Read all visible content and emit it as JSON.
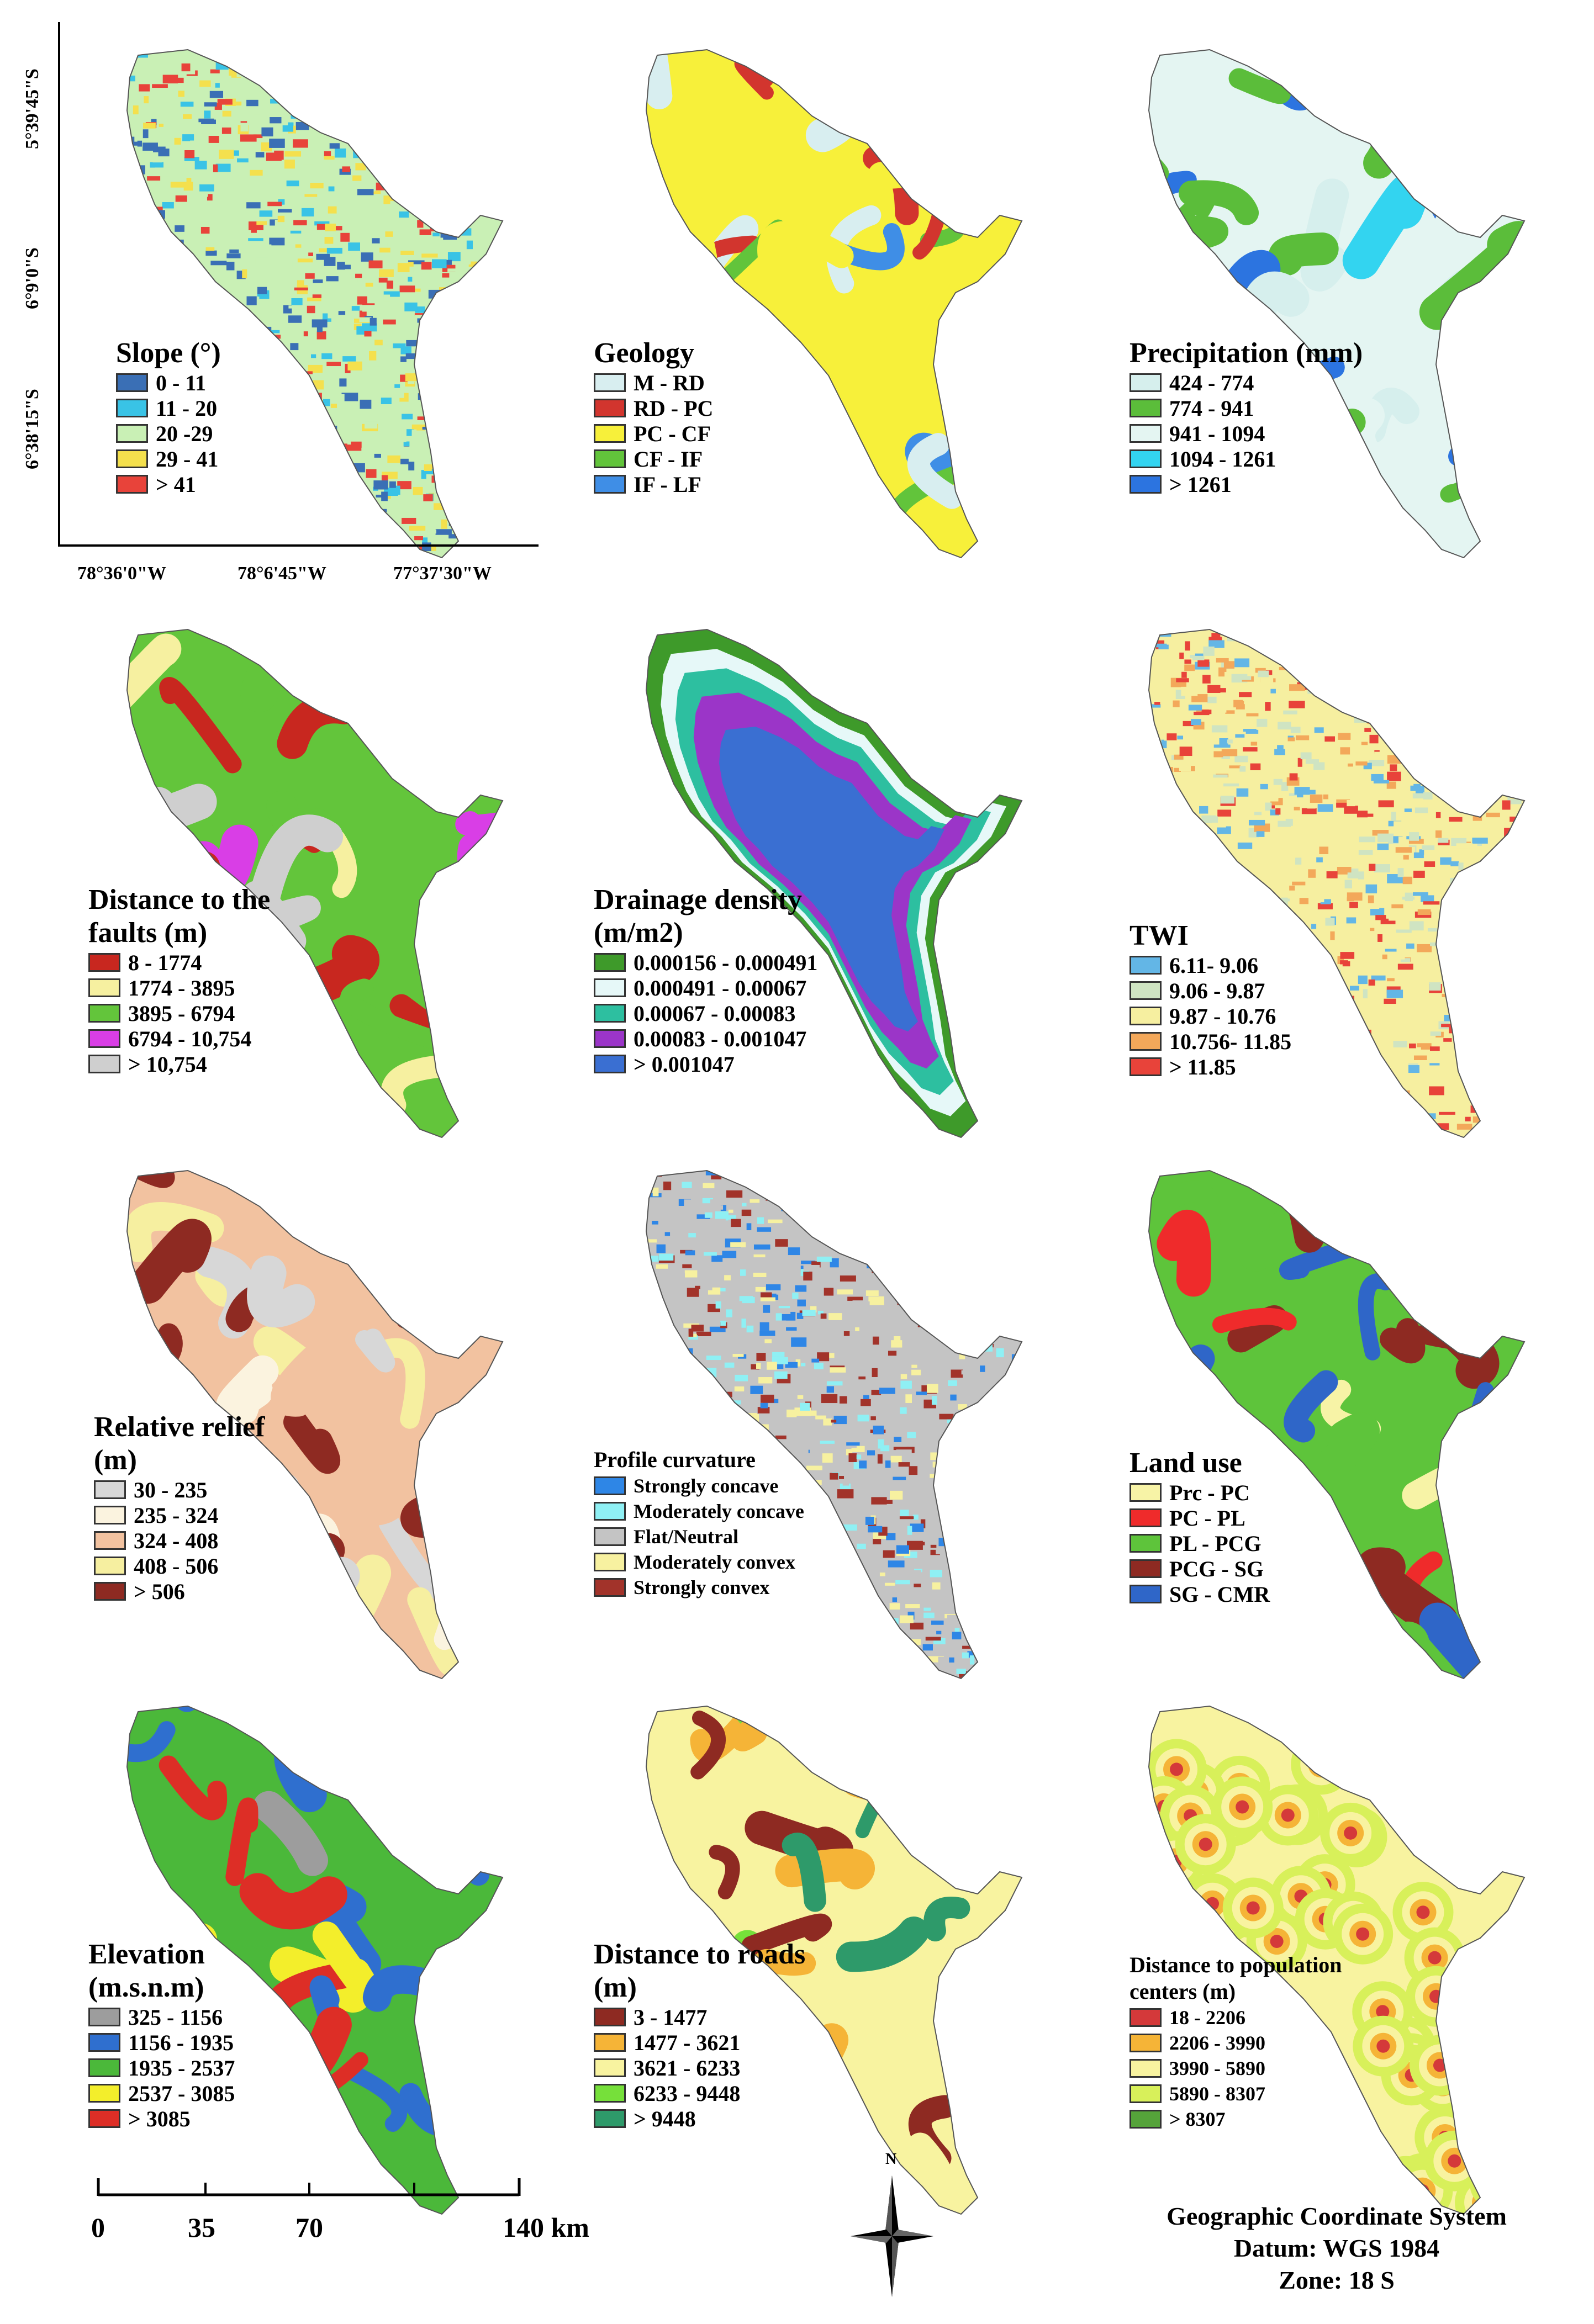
{
  "coord_labels": {
    "lon": [
      "78°36'0\"W",
      "78°6'45\"W",
      "77°37'30\"W"
    ],
    "lat": [
      "5°39'45\"S",
      "6°9'0\"S",
      "6°38'15\"S"
    ]
  },
  "panels": [
    {
      "id": "slope",
      "title": "Slope (°)",
      "texture": "noise",
      "items": [
        {
          "label": "0 - 11",
          "color": "#3a6fb5"
        },
        {
          "label": "11 - 20",
          "color": "#39c3e6"
        },
        {
          "label": "20 -29",
          "color": "#c9f0b5"
        },
        {
          "label": "29 - 41",
          "color": "#f4e04d"
        },
        {
          "label": "> 41",
          "color": "#e8433a"
        }
      ]
    },
    {
      "id": "geology",
      "title": "Geology",
      "texture": "bands",
      "items": [
        {
          "label": "M - RD",
          "color": "#d8eef0"
        },
        {
          "label": "RD - PC",
          "color": "#d2352e"
        },
        {
          "label": "PC -  CF",
          "color": "#f7f03a"
        },
        {
          "label": "CF - IF",
          "color": "#62c43b"
        },
        {
          "label": "IF - LF",
          "color": "#3f8ee6"
        }
      ]
    },
    {
      "id": "precipitation",
      "title": "Precipitation (mm)",
      "texture": "bands",
      "items": [
        {
          "label": "424 - 774",
          "color": "#d6efed"
        },
        {
          "label": "774 - 941",
          "color": "#5bbd3a"
        },
        {
          "label": "941 - 1094",
          "color": "#e4f5f2"
        },
        {
          "label": "1094 - 1261",
          "color": "#33d4f0"
        },
        {
          "label": "> 1261",
          "color": "#2c74e0"
        }
      ]
    },
    {
      "id": "faults",
      "title": "Distance to the\nfaults (m)",
      "texture": "bands",
      "items": [
        {
          "label": "8 - 1774",
          "color": "#c8271f"
        },
        {
          "label": "1774 - 3895",
          "color": "#f6f0a0"
        },
        {
          "label": "3895 - 6794",
          "color": "#63c53b"
        },
        {
          "label": "6794 - 10,754",
          "color": "#d93ee6"
        },
        {
          "label": "> 10,754",
          "color": "#cfcfcf"
        }
      ]
    },
    {
      "id": "drainage",
      "title": "Drainage density\n(m/m2)",
      "texture": "rings",
      "items": [
        {
          "label": "0.000156 - 0.000491",
          "color": "#3e9a2a"
        },
        {
          "label": "0.000491 - 0.00067",
          "color": "#e6f8f8"
        },
        {
          "label": "0.00067 - 0.00083",
          "color": "#2dbfa0"
        },
        {
          "label": "0.00083 - 0.001047",
          "color": "#9b35c8"
        },
        {
          "label": "> 0.001047",
          "color": "#3a6fd2"
        }
      ]
    },
    {
      "id": "twi",
      "title": "TWI",
      "texture": "noise",
      "items": [
        {
          "label": "6.11- 9.06",
          "color": "#63b6e6"
        },
        {
          "label": "9.06 - 9.87",
          "color": "#cfe4c2"
        },
        {
          "label": "9.87 - 10.76",
          "color": "#f6efa0"
        },
        {
          "label": "10.756- 11.85",
          "color": "#f3a85a"
        },
        {
          "label": "> 11.85",
          "color": "#e8433a"
        }
      ]
    },
    {
      "id": "relief",
      "title": "Relative relief\n(m)",
      "texture": "bands",
      "items": [
        {
          "label": "30 - 235",
          "color": "#d7d7d7"
        },
        {
          "label": "235 - 324",
          "color": "#fbf3df"
        },
        {
          "label": "324 - 408",
          "color": "#f2c2a0"
        },
        {
          "label": "408 - 506",
          "color": "#f6efa0"
        },
        {
          "label": "> 506",
          "color": "#8e2a22"
        }
      ]
    },
    {
      "id": "curvature",
      "title": "Profile curvature",
      "texture": "noise",
      "small": true,
      "items": [
        {
          "label": "Strongly concave",
          "color": "#2e86e6"
        },
        {
          "label": "Moderately concave",
          "color": "#8ff0f4"
        },
        {
          "label": "Flat/Neutral",
          "color": "#c4c4c4"
        },
        {
          "label": "Moderately convex",
          "color": "#f7f1a0"
        },
        {
          "label": "Strongly convex",
          "color": "#a2332a"
        }
      ]
    },
    {
      "id": "landuse",
      "title": "Land use",
      "texture": "bands",
      "items": [
        {
          "label": "Prc - PC",
          "color": "#f7f3a6"
        },
        {
          "label": "PC - PL",
          "color": "#ef2b2b"
        },
        {
          "label": "PL - PCG",
          "color": "#5ec43b"
        },
        {
          "label": "PCG - SG",
          "color": "#8e2a22"
        },
        {
          "label": "SG - CMR",
          "color": "#2f66c8"
        }
      ]
    },
    {
      "id": "elevation",
      "title": "Elevation\n(m.s.n.m)",
      "texture": "bands",
      "items": [
        {
          "label": "325 - 1156",
          "color": "#9d9d9d"
        },
        {
          "label": "1156 - 1935",
          "color": "#2f6fcf"
        },
        {
          "label": "1935 - 2537",
          "color": "#4bb83a"
        },
        {
          "label": "2537 - 3085",
          "color": "#f3ee2b"
        },
        {
          "label": "> 3085",
          "color": "#dd2e26"
        }
      ]
    },
    {
      "id": "roads",
      "title": "Distance to roads\n(m)",
      "texture": "bands",
      "items": [
        {
          "label": "3 - 1477",
          "color": "#8e2a22"
        },
        {
          "label": "1477 - 3621",
          "color": "#f5b437"
        },
        {
          "label": "3621 - 6233",
          "color": "#f8f3a0"
        },
        {
          "label": "6233 - 9448",
          "color": "#76e03a"
        },
        {
          "label": "> 9448",
          "color": "#2e9a6a"
        }
      ]
    },
    {
      "id": "population",
      "title": "Distance to population\ncenters (m)",
      "texture": "dots",
      "small": true,
      "items": [
        {
          "label": "18 - 2206",
          "color": "#d4393a"
        },
        {
          "label": "2206 - 3990",
          "color": "#f5b437"
        },
        {
          "label": "3990 - 5890",
          "color": "#f8f3a0"
        },
        {
          "label": "5890 - 8307",
          "color": "#d8f05a"
        },
        {
          "label": "> 8307",
          "color": "#55a33a"
        }
      ]
    }
  ],
  "scale_bar": {
    "labels": [
      "0",
      "35",
      "70",
      "140 km"
    ]
  },
  "north_arrow": {
    "label": "N"
  },
  "crs": {
    "line1": "Geographic Coordinate System",
    "line2": "Datum: WGS 1984",
    "line3": "Zone: 18 S"
  }
}
